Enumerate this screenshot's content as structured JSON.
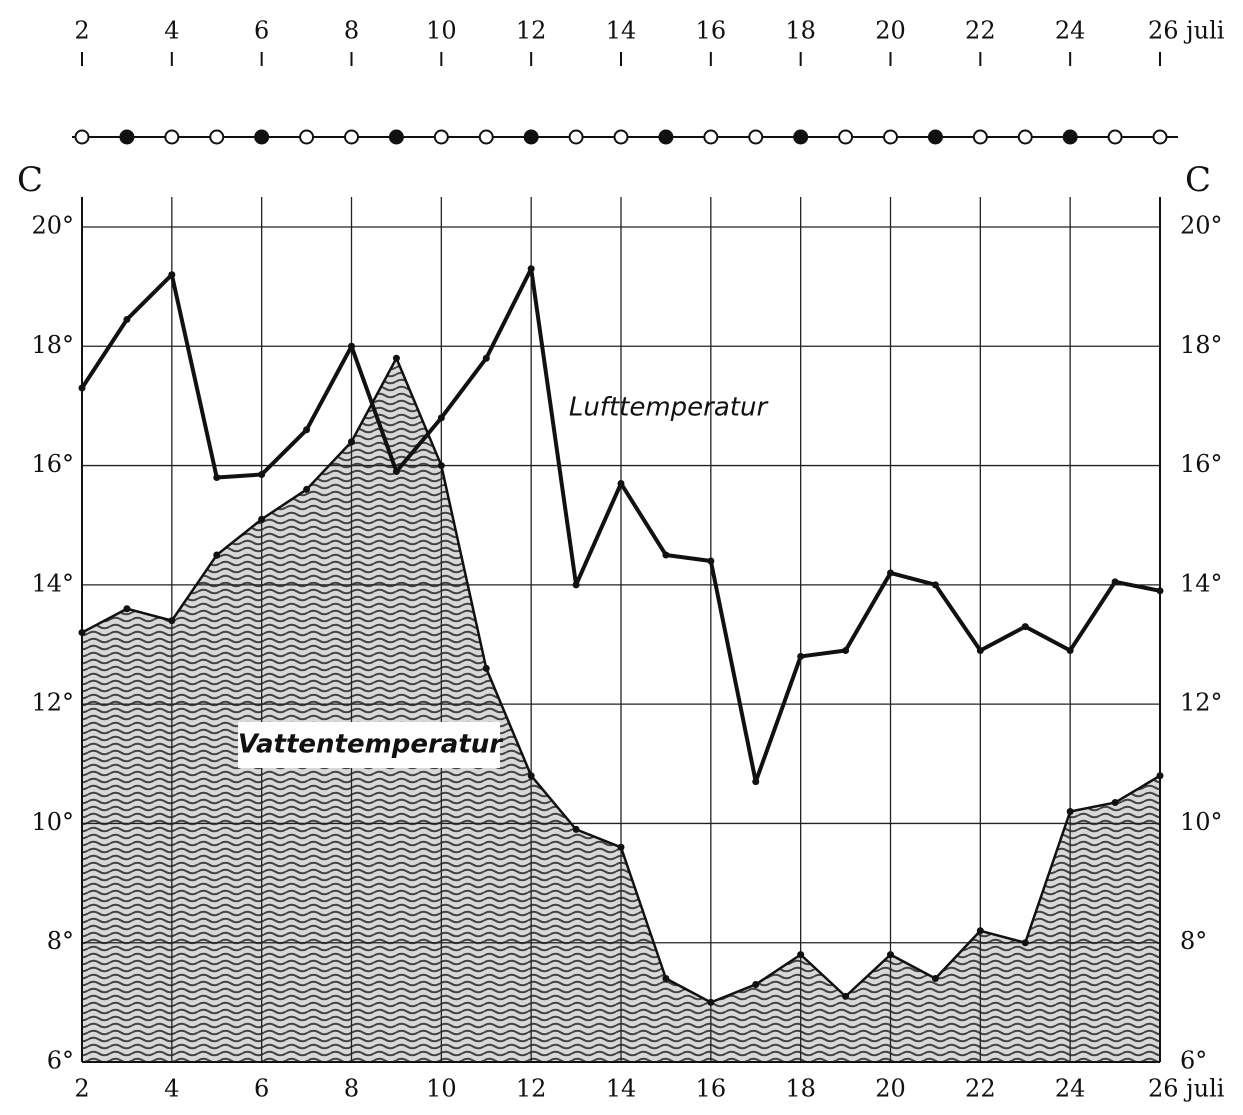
{
  "chart_data": {
    "type": "line",
    "y_label": "C",
    "x": [
      2,
      3,
      4,
      5,
      6,
      7,
      8,
      9,
      10,
      11,
      12,
      13,
      14,
      15,
      16,
      17,
      18,
      19,
      20,
      21,
      22,
      23,
      24,
      25,
      26
    ],
    "series": [
      {
        "name": "Lufttemperatur",
        "color": "#111111",
        "values": [
          17.3,
          18.45,
          19.2,
          15.8,
          15.85,
          16.6,
          18.0,
          15.9,
          16.8,
          17.8,
          19.3,
          14.0,
          15.7,
          14.5,
          14.4,
          10.7,
          12.8,
          12.9,
          14.2,
          14.0,
          12.9,
          13.3,
          12.9,
          14.05,
          13.9
        ]
      },
      {
        "name": "Vattentemperatur",
        "color": "#111111",
        "values": [
          13.2,
          13.6,
          13.4,
          14.5,
          15.1,
          15.6,
          16.4,
          17.8,
          16.0,
          12.6,
          10.8,
          9.9,
          9.6,
          7.4,
          7.0,
          7.3,
          7.8,
          7.1,
          7.8,
          7.4,
          8.2,
          8.0,
          10.2,
          10.35,
          10.8
        ]
      }
    ],
    "xlim": [
      2,
      26
    ],
    "xticks": [
      2,
      4,
      6,
      8,
      10,
      12,
      14,
      16,
      18,
      20,
      22,
      24,
      {
        "value": 26,
        "label": "26 juli"
      }
    ],
    "ylim": [
      6,
      20
    ],
    "yticks": [
      {
        "value": 6,
        "label": "6°"
      },
      {
        "value": 8,
        "label": "8°"
      },
      {
        "value": 10,
        "label": "10°"
      },
      {
        "value": 12,
        "label": "12°"
      },
      {
        "value": 14,
        "label": "14°"
      },
      {
        "value": 16,
        "label": "16°"
      },
      {
        "value": 18,
        "label": "18°"
      },
      {
        "value": 20,
        "label": "20°"
      }
    ],
    "grid": true
  }
}
